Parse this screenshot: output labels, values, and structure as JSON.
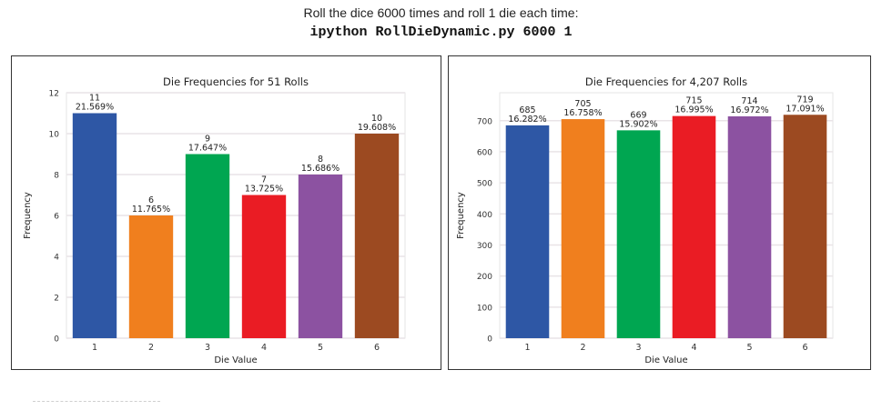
{
  "caption": "Roll the dice 6000 times and roll 1 die each time:",
  "command": "ipython RollDieDynamic.py 6000 1",
  "colors": {
    "bar_colors": [
      "#2e57a5",
      "#f07f1e",
      "#00a651",
      "#ea1c24",
      "#8c52a1",
      "#9c4a21"
    ],
    "grid": "#e9e4e7",
    "axes_border": "#e6e6e6"
  },
  "chart_data": [
    {
      "type": "bar",
      "title": "Die Frequencies for 51 Rolls",
      "xlabel": "Die Value",
      "ylabel": "Frequency",
      "categories": [
        "1",
        "2",
        "3",
        "4",
        "5",
        "6"
      ],
      "values": [
        11,
        6,
        9,
        7,
        8,
        10
      ],
      "bar_labels": [
        "11\n21.569%",
        "6\n11.765%",
        "9\n17.647%",
        "7\n13.725%",
        "8\n15.686%",
        "10\n19.608%"
      ],
      "ylim": [
        0,
        12
      ],
      "yticks": [
        0,
        2,
        4,
        6,
        8,
        10,
        12
      ],
      "grid": true
    },
    {
      "type": "bar",
      "title": "Die Frequencies for 4,207 Rolls",
      "xlabel": "Die Value",
      "ylabel": "Frequency",
      "categories": [
        "1",
        "2",
        "3",
        "4",
        "5",
        "6"
      ],
      "values": [
        685,
        705,
        669,
        715,
        714,
        719
      ],
      "bar_labels": [
        "685\n16.282%",
        "705\n16.758%",
        "669\n15.902%",
        "715\n16.995%",
        "714\n16.972%",
        "719\n17.091%"
      ],
      "ylim": [
        0,
        790
      ],
      "yticks": [
        0,
        100,
        200,
        300,
        400,
        500,
        600,
        700
      ],
      "grid": true
    }
  ]
}
